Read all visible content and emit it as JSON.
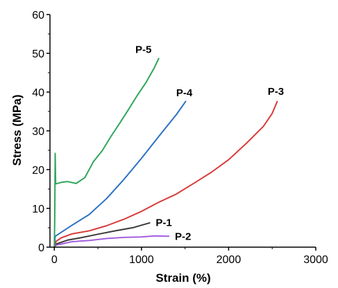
{
  "chart_data": {
    "type": "line",
    "title": "",
    "xlabel": "Strain (%)",
    "ylabel": "Stress (MPa)",
    "xlim": [
      -50,
      3000
    ],
    "ylim": [
      0,
      60
    ],
    "xticks": [
      "0",
      "1000",
      "2000",
      "3000"
    ],
    "yticks": [
      "0",
      "10",
      "20",
      "30",
      "40",
      "50",
      "60"
    ],
    "grid": false,
    "legend": "inline labels at line ends",
    "series": [
      {
        "name": "P-1",
        "color": "#3a3a3a",
        "points": [
          [
            0,
            0
          ],
          [
            20,
            0.8
          ],
          [
            60,
            1.2
          ],
          [
            150,
            1.7
          ],
          [
            300,
            2.5
          ],
          [
            500,
            3.3
          ],
          [
            700,
            4.2
          ],
          [
            900,
            5.1
          ],
          [
            1100,
            6.3
          ]
        ]
      },
      {
        "name": "P-2",
        "color": "#a45ee0",
        "points": [
          [
            0,
            0
          ],
          [
            20,
            0.5
          ],
          [
            80,
            0.9
          ],
          [
            200,
            1.3
          ],
          [
            400,
            1.8
          ],
          [
            600,
            2.2
          ],
          [
            800,
            2.5
          ],
          [
            1000,
            2.7
          ],
          [
            1150,
            2.8
          ],
          [
            1320,
            2.8
          ]
        ]
      },
      {
        "name": "P-3",
        "color": "#d93a3a",
        "points": [
          [
            0,
            0
          ],
          [
            20,
            1.5
          ],
          [
            80,
            2.5
          ],
          [
            200,
            3.3
          ],
          [
            400,
            4.3
          ],
          [
            600,
            5.5
          ],
          [
            800,
            7.2
          ],
          [
            1000,
            9.3
          ],
          [
            1200,
            11.5
          ],
          [
            1400,
            13.8
          ],
          [
            1600,
            16.4
          ],
          [
            1800,
            19.3
          ],
          [
            2000,
            22.6
          ],
          [
            2200,
            26.6
          ],
          [
            2400,
            31.3
          ],
          [
            2500,
            34.4
          ],
          [
            2560,
            37.7
          ]
        ]
      },
      {
        "name": "P-4",
        "color": "#2c72c0",
        "points": [
          [
            0,
            0
          ],
          [
            10,
            2.8
          ],
          [
            50,
            3.5
          ],
          [
            200,
            5.5
          ],
          [
            400,
            8.5
          ],
          [
            600,
            12.5
          ],
          [
            800,
            17.5
          ],
          [
            1000,
            23.0
          ],
          [
            1200,
            28.5
          ],
          [
            1400,
            34.3
          ],
          [
            1510,
            37.7
          ]
        ]
      },
      {
        "name": "P-5",
        "color": "#2fa65a",
        "points": [
          [
            0,
            0
          ],
          [
            5,
            8
          ],
          [
            10,
            24.3
          ],
          [
            15,
            16.2
          ],
          [
            80,
            16.8
          ],
          [
            150,
            16.9
          ],
          [
            250,
            16.4
          ],
          [
            350,
            18.0
          ],
          [
            450,
            22.0
          ],
          [
            550,
            25.0
          ],
          [
            650,
            28.5
          ],
          [
            750,
            32.0
          ],
          [
            850,
            35.5
          ],
          [
            950,
            39.0
          ],
          [
            1050,
            42.5
          ],
          [
            1150,
            46.3
          ],
          [
            1200,
            48.8
          ]
        ]
      }
    ]
  }
}
